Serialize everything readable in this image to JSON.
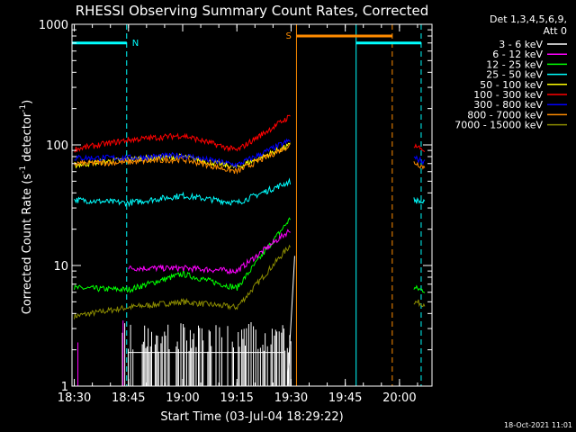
{
  "chart_data": {
    "type": "line",
    "title": "RHESSI Observing Summary Count Rates, Corrected",
    "xlabel": "Start Time (03-Jul-04 18:29:22)",
    "ylabel": "Corrected Count Rate (s",
    "ylabel_sup1": "-1",
    "ylabel_mid": " detector",
    "ylabel_sup2": "-1",
    "ylabel_end": ")",
    "y_scale": "log",
    "ylim": [
      1,
      1000
    ],
    "xlim": [
      "18:29:22",
      "20:09:00"
    ],
    "x_ticks": [
      "18:30",
      "18:45",
      "19:00",
      "19:15",
      "19:30",
      "19:45",
      "20:00"
    ],
    "y_ticks": [
      "1",
      "10",
      "100",
      "1000"
    ],
    "legend_header": [
      "Det 1,3,4,5,6,9,",
      "Att 0"
    ],
    "legend_position": "top-right outside",
    "footer_date": "18-Oct-2021 11:01",
    "series": [
      {
        "name": "3 - 6 keV",
        "color": "#ffffff"
      },
      {
        "name": "6 - 12 keV",
        "color": "#ff00ff"
      },
      {
        "name": "12 - 25 keV",
        "color": "#00ff00"
      },
      {
        "name": "25 - 50 keV",
        "color": "#00ffff"
      },
      {
        "name": "50 - 100 keV",
        "color": "#ffff00"
      },
      {
        "name": "100 - 300 keV",
        "color": "#ff0000"
      },
      {
        "name": "300 - 800 keV",
        "color": "#0000ff"
      },
      {
        "name": "800 - 7000 keV",
        "color": "#ff8c00"
      },
      {
        "name": "7000 - 15000 keV",
        "color": "#8b8b00"
      }
    ],
    "data_points": {
      "25 - 50 keV": [
        [
          "18:30",
          35
        ],
        [
          "18:45",
          33
        ],
        [
          "19:00",
          38
        ],
        [
          "19:15",
          33
        ],
        [
          "19:30",
          50
        ],
        [
          "20:04",
          35
        ],
        [
          "20:07",
          33
        ]
      ],
      "100 - 300 keV": [
        [
          "18:30",
          92
        ],
        [
          "18:45",
          110
        ],
        [
          "19:00",
          120
        ],
        [
          "19:15",
          90
        ],
        [
          "19:30",
          175
        ],
        [
          "20:04",
          100
        ],
        [
          "20:07",
          90
        ]
      ],
      "300 - 800 keV": [
        [
          "18:30",
          78
        ],
        [
          "18:45",
          78
        ],
        [
          "19:00",
          82
        ],
        [
          "19:15",
          68
        ],
        [
          "19:30",
          110
        ],
        [
          "20:04",
          78
        ],
        [
          "20:07",
          72
        ]
      ],
      "800 - 7000 keV": [
        [
          "18:30",
          70
        ],
        [
          "18:45",
          72
        ],
        [
          "19:00",
          76
        ],
        [
          "19:15",
          60
        ],
        [
          "19:30",
          100
        ],
        [
          "20:04",
          72
        ],
        [
          "20:07",
          65
        ]
      ],
      "50 - 100 keV": [
        [
          "18:30",
          68
        ],
        [
          "18:45",
          76
        ],
        [
          "19:00",
          80
        ],
        [
          "19:15",
          65
        ],
        [
          "19:30",
          100
        ]
      ],
      "12 - 25 keV": [
        [
          "18:30",
          6.5
        ],
        [
          "18:45",
          6.3
        ],
        [
          "19:00",
          8.5
        ],
        [
          "19:15",
          6.5
        ],
        [
          "19:30",
          25
        ],
        [
          "20:04",
          6.5
        ],
        [
          "20:07",
          6.2
        ]
      ],
      "6 - 12 keV": [
        [
          "18:45",
          9.5
        ],
        [
          "19:00",
          9.5
        ],
        [
          "19:15",
          9
        ],
        [
          "19:30",
          20
        ]
      ],
      "7000 - 15000 keV": [
        [
          "18:30",
          3.8
        ],
        [
          "18:45",
          4.5
        ],
        [
          "19:00",
          5
        ],
        [
          "19:15",
          4.5
        ],
        [
          "19:30",
          15
        ],
        [
          "20:04",
          5
        ],
        [
          "20:07",
          4.8
        ]
      ]
    },
    "annotations": [
      {
        "label": "N",
        "color": "#00ffff",
        "from": "18:29:22",
        "to": "18:44:30",
        "level": 700
      },
      {
        "label": "S",
        "color": "#ff8c00",
        "from": "19:31:30",
        "to": "19:58:00",
        "level": 800
      },
      {
        "label": "",
        "color": "#00ffff",
        "from": "19:48:00",
        "to": "20:06:00",
        "level": 700
      }
    ],
    "vertical_markers": [
      {
        "time": "18:29:22",
        "color": "#00ffff",
        "style": "solid"
      },
      {
        "time": "18:44:30",
        "color": "#00ffff",
        "style": "dashed"
      },
      {
        "time": "19:31:30",
        "color": "#ff8c00",
        "style": "solid"
      },
      {
        "time": "19:48:00",
        "color": "#00ffff",
        "style": "solid"
      },
      {
        "time": "19:58:00",
        "color": "#ff8c00",
        "style": "dashed"
      },
      {
        "time": "20:06:00",
        "color": "#00ffff",
        "style": "dashed"
      }
    ]
  }
}
